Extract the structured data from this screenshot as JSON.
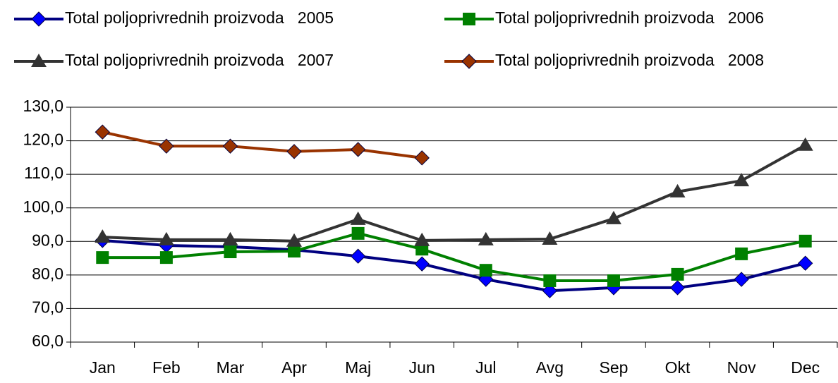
{
  "chart_data": {
    "type": "line",
    "categories": [
      "Jan",
      "Feb",
      "Mar",
      "Apr",
      "Maj",
      "Jun",
      "Jul",
      "Avg",
      "Sep",
      "Okt",
      "Nov",
      "Dec"
    ],
    "series": [
      {
        "name": "Total poljoprivrednih proizvoda   2005",
        "color": "#000080",
        "marker_color": "#0000ff",
        "marker": "diamond",
        "values": [
          90.3,
          88.8,
          88.4,
          87.5,
          85.6,
          83.3,
          78.7,
          75.3,
          76.2,
          76.2,
          78.7,
          83.5
        ]
      },
      {
        "name": "Total poljoprivrednih proizvoda   2006",
        "color": "#008000",
        "marker_color": "#008000",
        "marker": "square",
        "values": [
          85.2,
          85.2,
          86.9,
          87.1,
          92.4,
          87.7,
          81.4,
          78.3,
          78.3,
          80.2,
          86.3,
          90.1
        ]
      },
      {
        "name": "Total poljoprivrednih proizvoda   2007",
        "color": "#333333",
        "marker_color": "#333333",
        "marker": "triangle",
        "values": [
          91.3,
          90.5,
          90.5,
          90.1,
          96.6,
          90.3,
          90.5,
          90.7,
          96.8,
          104.8,
          108.1,
          118.7
        ]
      },
      {
        "name": "Total poljoprivrednih proizvoda   2008",
        "color": "#993300",
        "marker_color": "#993300",
        "marker": "diamond",
        "values": [
          122.6,
          118.4,
          118.4,
          116.8,
          117.4,
          114.9,
          null,
          null,
          null,
          null,
          null,
          null
        ]
      }
    ],
    "ylim": [
      60,
      130
    ],
    "yticks": [
      {
        "value": 60,
        "label": "60,0"
      },
      {
        "value": 70,
        "label": "70,0"
      },
      {
        "value": 80,
        "label": "80,0"
      },
      {
        "value": 90,
        "label": "90,0"
      },
      {
        "value": 100,
        "label": "100,0"
      },
      {
        "value": 110,
        "label": "110,0"
      },
      {
        "value": 120,
        "label": "120,0"
      },
      {
        "value": 130,
        "label": "130,0"
      }
    ],
    "grid": true,
    "legend": "top"
  }
}
